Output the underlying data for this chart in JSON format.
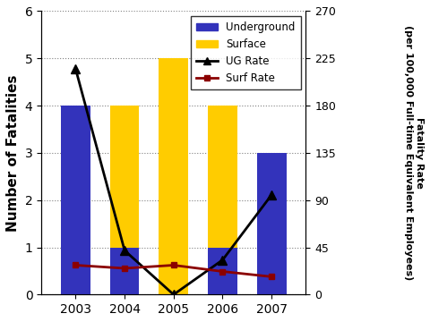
{
  "years": [
    2003,
    2004,
    2005,
    2006,
    2007
  ],
  "underground": [
    4,
    1,
    0,
    1,
    3
  ],
  "surface": [
    4,
    4,
    5,
    4,
    3
  ],
  "ug_rate": [
    215,
    42,
    0,
    33,
    95
  ],
  "surf_rate": [
    28,
    25,
    28,
    22,
    17
  ],
  "left_ylim": [
    0,
    6
  ],
  "left_yticks": [
    0,
    1,
    2,
    3,
    4,
    5,
    6
  ],
  "right_ylim": [
    0,
    270
  ],
  "right_yticks": [
    0,
    45,
    90,
    135,
    180,
    225,
    270
  ],
  "ylabel_left": "Number of Fatalities",
  "ylabel_right": "Fatality Rate\n(per 100,000 Full-time Equivalent Employees)",
  "underground_color": "#3333bb",
  "surface_color": "#ffcc00",
  "ug_rate_color": "#000000",
  "surf_rate_color": "#8b0000",
  "background_color": "#ffffff",
  "bar_width": 0.6,
  "xlim": [
    2002.3,
    2007.7
  ],
  "legend_labels": [
    "Underground",
    "Surface",
    "UG Rate",
    "Surf Rate"
  ]
}
